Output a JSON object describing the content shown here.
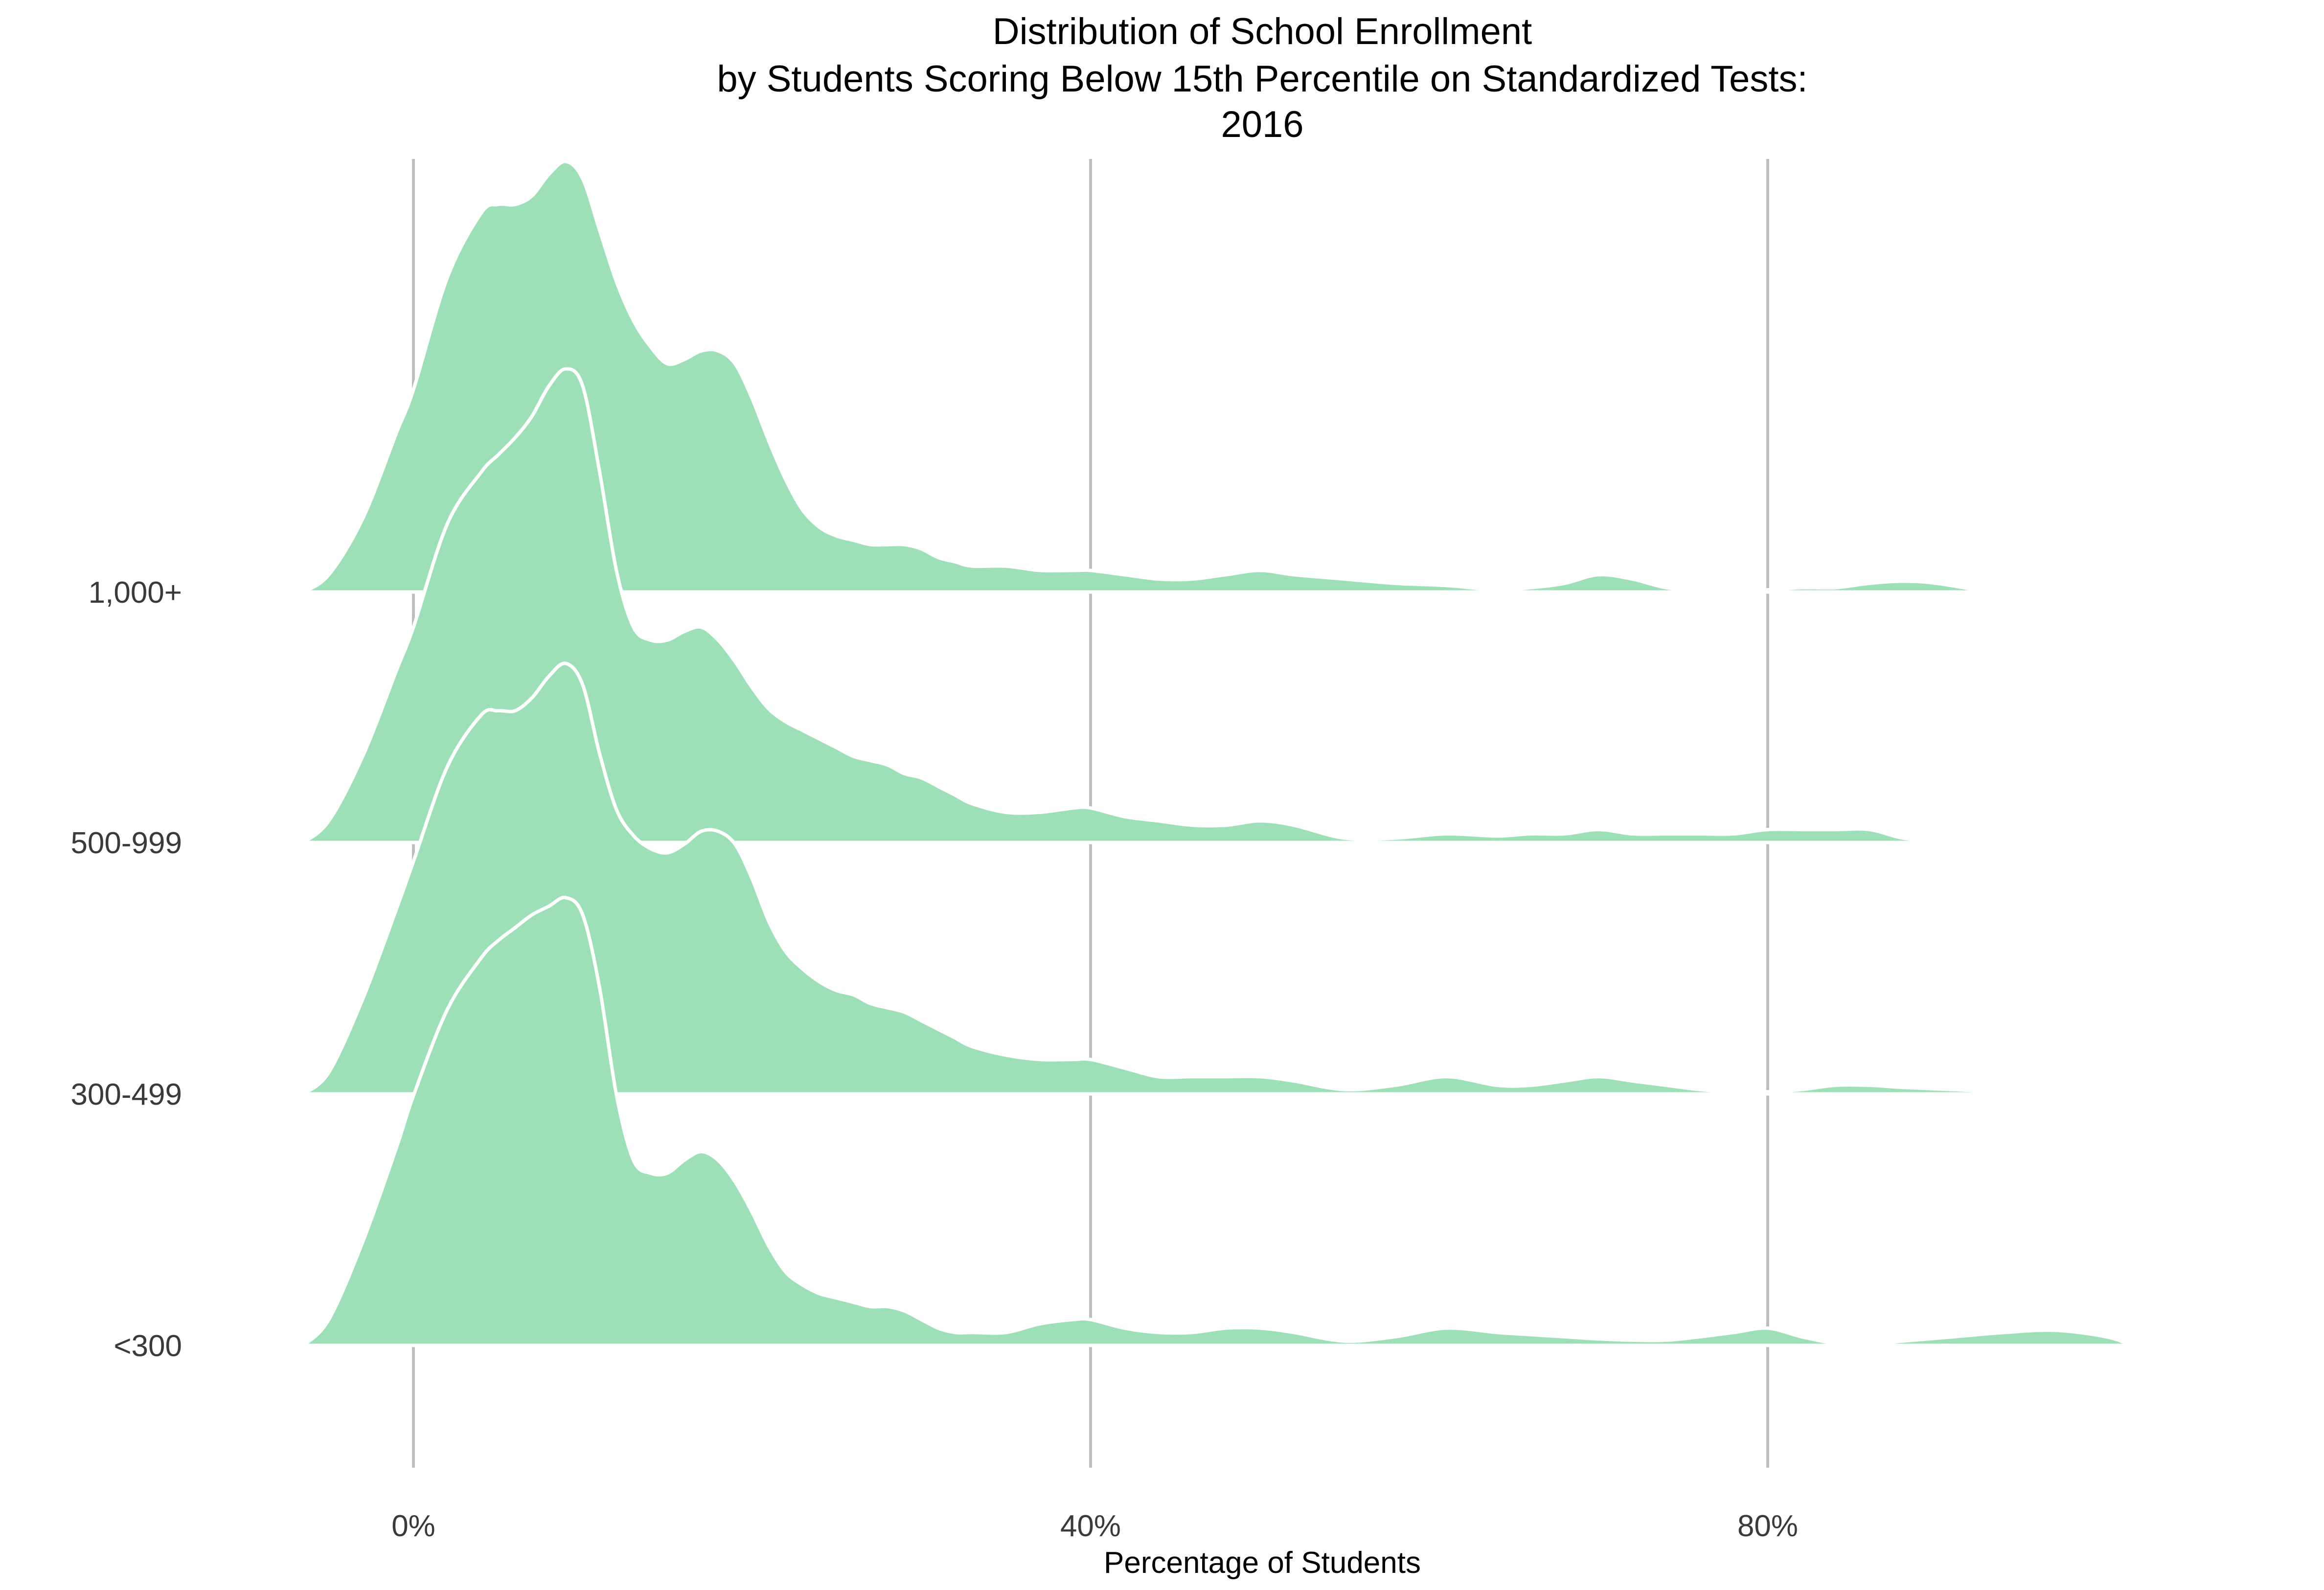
{
  "chart_data": {
    "type": "ridgeline",
    "title": [
      "Distribution of School Enrollment",
      "by Students Scoring Below 15th Percentile on Standardized Tests:",
      "2016"
    ],
    "xlabel": "Percentage of Students",
    "ylabel": "",
    "xlim": [
      -6.5,
      102
    ],
    "x_ticks": [
      0,
      40,
      80
    ],
    "x_tick_labels": [
      "0%",
      "40%",
      "80%"
    ],
    "grid": "vertical major lines only",
    "fill_color": "#9de0b8",
    "outline_color": "#ffffff",
    "gridline_color": "#bdbdbd",
    "categories": [
      "1,000+",
      "500-999",
      "300-499",
      "<300"
    ],
    "series": [
      {
        "label": "1,000+",
        "x": [
          -6.5,
          -5,
          -3,
          -1,
          0,
          2,
          4,
          5,
          6,
          7,
          8,
          9,
          10,
          11,
          12,
          13,
          14,
          15,
          16,
          17,
          18,
          19,
          20,
          21,
          22,
          23,
          24,
          25,
          26,
          27,
          28,
          29,
          30,
          31,
          32,
          33,
          35,
          37,
          39,
          40,
          42,
          44,
          46,
          48,
          50,
          52,
          55,
          58,
          61,
          64,
          66,
          68,
          70,
          72,
          74,
          76,
          78,
          80,
          82,
          84,
          86,
          88,
          90,
          93
        ],
        "density": [
          0,
          0.04,
          0.17,
          0.37,
          0.47,
          0.73,
          0.88,
          0.9,
          0.9,
          0.92,
          0.97,
          1.0,
          0.96,
          0.84,
          0.72,
          0.63,
          0.57,
          0.53,
          0.54,
          0.56,
          0.56,
          0.53,
          0.45,
          0.35,
          0.26,
          0.19,
          0.15,
          0.13,
          0.12,
          0.11,
          0.11,
          0.11,
          0.1,
          0.08,
          0.07,
          0.06,
          0.06,
          0.05,
          0.05,
          0.05,
          0.04,
          0.03,
          0.03,
          0.04,
          0.05,
          0.04,
          0.03,
          0.02,
          0.015,
          0.005,
          0.01,
          0.02,
          0.04,
          0.03,
          0.01,
          0.005,
          0.005,
          0.005,
          0.01,
          0.01,
          0.02,
          0.025,
          0.02,
          0
        ]
      },
      {
        "label": "500-999",
        "x": [
          -6.5,
          -5,
          -3,
          -1,
          0,
          2,
          4,
          5,
          6,
          7,
          8,
          9,
          10,
          11,
          12,
          13,
          14,
          15,
          16,
          17,
          18,
          19,
          20,
          21,
          22,
          23,
          24,
          25,
          26,
          27,
          28,
          29,
          30,
          31,
          32,
          33,
          35,
          37,
          39,
          40,
          42,
          44,
          46,
          48,
          50,
          52,
          55,
          58,
          61,
          64,
          66,
          68,
          70,
          72,
          74,
          76,
          78,
          80,
          82,
          84,
          86,
          88,
          90,
          94,
          100
        ],
        "density": [
          0,
          0.05,
          0.2,
          0.4,
          0.5,
          0.74,
          0.86,
          0.9,
          0.94,
          0.99,
          1.06,
          1.1,
          1.06,
          0.86,
          0.63,
          0.5,
          0.47,
          0.47,
          0.49,
          0.5,
          0.47,
          0.42,
          0.36,
          0.31,
          0.28,
          0.26,
          0.24,
          0.22,
          0.2,
          0.19,
          0.18,
          0.16,
          0.15,
          0.13,
          0.11,
          0.09,
          0.07,
          0.07,
          0.08,
          0.08,
          0.06,
          0.05,
          0.04,
          0.04,
          0.05,
          0.04,
          0.01,
          0.01,
          0.02,
          0.015,
          0.02,
          0.02,
          0.03,
          0.02,
          0.02,
          0.02,
          0.02,
          0.03,
          0.03,
          0.03,
          0.03,
          0.01,
          0.005,
          0.005,
          0
        ]
      },
      {
        "label": "300-499",
        "x": [
          -6.5,
          -5,
          -3,
          -1,
          0,
          2,
          4,
          5,
          6,
          7,
          8,
          9,
          10,
          11,
          12,
          13,
          14,
          15,
          16,
          17,
          18,
          19,
          20,
          21,
          22,
          23,
          24,
          25,
          26,
          27,
          28,
          29,
          30,
          31,
          32,
          33,
          35,
          37,
          39,
          40,
          42,
          44,
          46,
          48,
          50,
          52,
          55,
          58,
          61,
          64,
          66,
          68,
          70,
          72,
          74,
          76,
          78,
          80,
          82,
          84,
          86,
          88,
          91,
          94,
          97,
          100,
          102
        ],
        "density": [
          0,
          0.05,
          0.22,
          0.43,
          0.54,
          0.76,
          0.88,
          0.89,
          0.89,
          0.92,
          0.97,
          1.0,
          0.95,
          0.79,
          0.66,
          0.6,
          0.57,
          0.56,
          0.58,
          0.61,
          0.61,
          0.58,
          0.5,
          0.4,
          0.33,
          0.29,
          0.26,
          0.24,
          0.23,
          0.21,
          0.2,
          0.19,
          0.17,
          0.15,
          0.13,
          0.11,
          0.09,
          0.08,
          0.08,
          0.08,
          0.06,
          0.04,
          0.04,
          0.04,
          0.04,
          0.03,
          0.01,
          0.02,
          0.04,
          0.02,
          0.02,
          0.03,
          0.04,
          0.03,
          0.02,
          0.01,
          0.005,
          0.005,
          0.01,
          0.02,
          0.02,
          0.015,
          0.01,
          0.005,
          0.003,
          0.005,
          0
        ]
      },
      {
        "label": "<300",
        "x": [
          -6.5,
          -5,
          -3,
          -1,
          0,
          2,
          4,
          5,
          6,
          7,
          8,
          9,
          10,
          11,
          12,
          13,
          14,
          15,
          16,
          17,
          18,
          19,
          20,
          21,
          22,
          23,
          24,
          25,
          26,
          27,
          28,
          29,
          30,
          31,
          32,
          33,
          35,
          37,
          39,
          40,
          42,
          44,
          46,
          48,
          50,
          52,
          55,
          58,
          61,
          64,
          66,
          68,
          70,
          72,
          74,
          76,
          78,
          80,
          82,
          84,
          86,
          88,
          91,
          94,
          97,
          100,
          101.5
        ],
        "density": [
          0,
          0.06,
          0.24,
          0.46,
          0.58,
          0.78,
          0.9,
          0.94,
          0.97,
          1.0,
          1.02,
          1.04,
          1.0,
          0.83,
          0.58,
          0.43,
          0.4,
          0.4,
          0.43,
          0.45,
          0.43,
          0.38,
          0.31,
          0.23,
          0.17,
          0.14,
          0.12,
          0.11,
          0.1,
          0.09,
          0.09,
          0.08,
          0.06,
          0.04,
          0.03,
          0.03,
          0.03,
          0.05,
          0.06,
          0.06,
          0.04,
          0.03,
          0.03,
          0.04,
          0.04,
          0.03,
          0.01,
          0.02,
          0.04,
          0.03,
          0.025,
          0.02,
          0.015,
          0.012,
          0.012,
          0.02,
          0.03,
          0.04,
          0.02,
          0.005,
          0.003,
          0.01,
          0.02,
          0.03,
          0.035,
          0.02,
          0
        ]
      }
    ]
  }
}
